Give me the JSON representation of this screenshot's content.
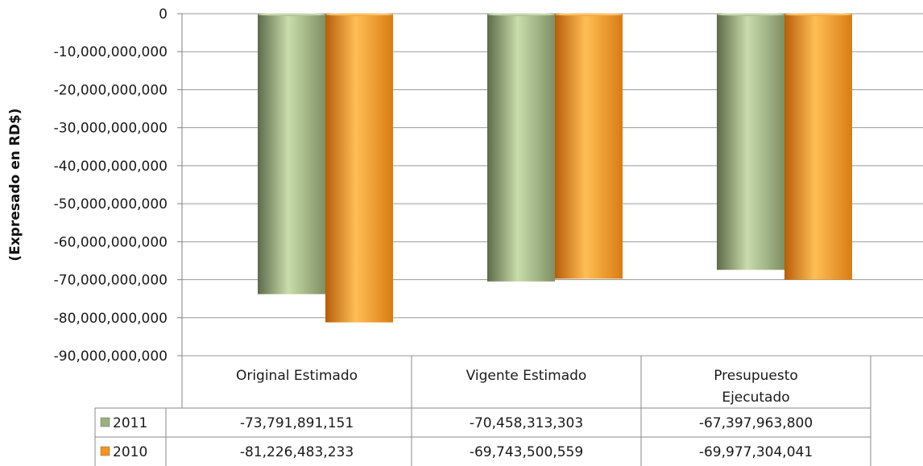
{
  "chart_data": {
    "type": "bar",
    "ylabel": "(Expresado en RD$)",
    "ylim": [
      -90000000000,
      0
    ],
    "y_ticks": [
      0,
      -10000000000,
      -20000000000,
      -30000000000,
      -40000000000,
      -50000000000,
      -60000000000,
      -70000000000,
      -80000000000,
      -90000000000
    ],
    "y_tick_labels": [
      "0",
      "-10,000,000,000",
      "-20,000,000,000",
      "-30,000,000,000",
      "-40,000,000,000",
      "-50,000,000,000",
      "-60,000,000,000",
      "-70,000,000,000",
      "-80,000,000,000",
      "-90,000,000,000"
    ],
    "categories": [
      [
        "Original Estimado"
      ],
      [
        "Vigente Estimado"
      ],
      [
        "Presupuesto",
        "Ejecutado"
      ]
    ],
    "series": [
      {
        "name": "2011",
        "values": [
          -73791891151,
          -70458313303,
          -67397963800
        ],
        "value_labels": [
          "-73,791,891,151",
          "-70,458,313,303",
          "-67,397,963,800"
        ],
        "color": "#9BB07F"
      },
      {
        "name": "2010",
        "values": [
          -81226483233,
          -69743500559,
          -69977304041
        ],
        "value_labels": [
          "-81,226,483,233",
          "-69,743,500,559",
          "-69,977,304,041"
        ],
        "color": "#F7941D"
      }
    ],
    "grid": true,
    "legend": "data-table"
  }
}
